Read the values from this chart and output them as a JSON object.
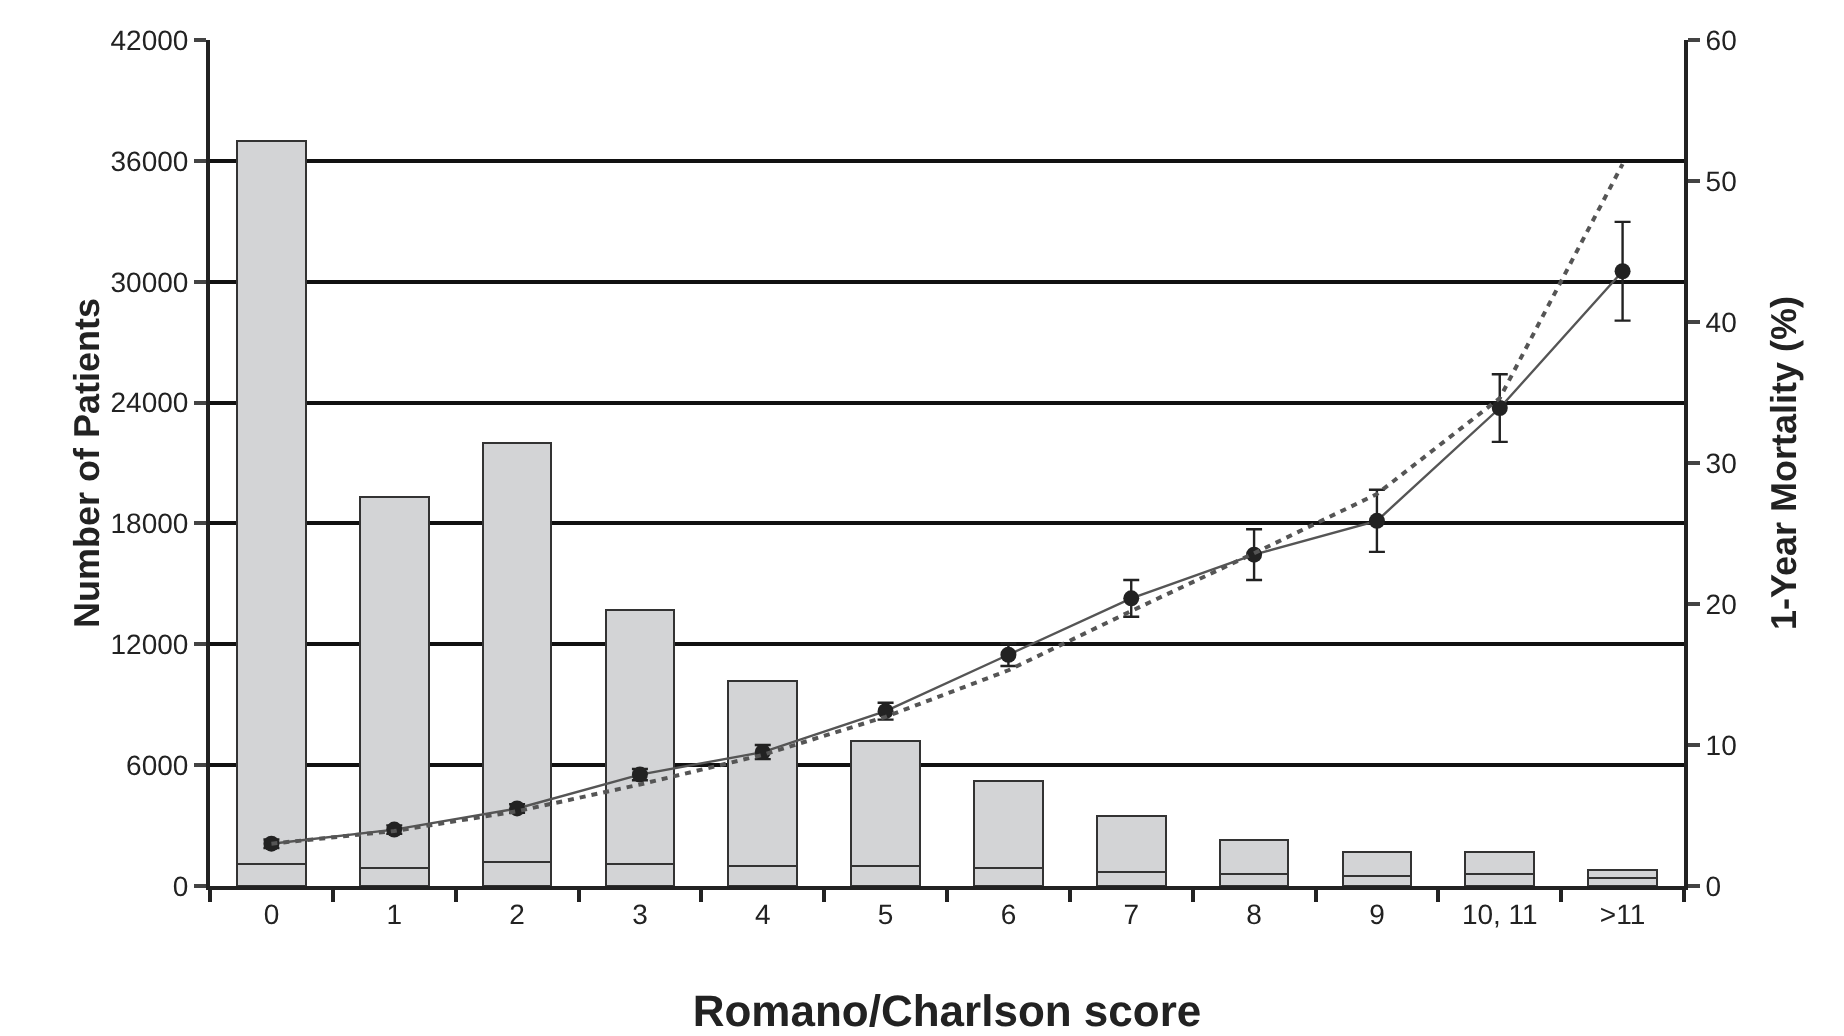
{
  "chart_data": {
    "type": "bar",
    "stacked": true,
    "xlabel": "Romano/Charlson score",
    "ylabel": "Number of Patients",
    "y2label": "1-Year Mortality (%)",
    "categories": [
      "0",
      "1",
      "2",
      "3",
      "4",
      "5",
      "6",
      "7",
      "8",
      "9",
      "10, 11",
      ">11"
    ],
    "series": [
      {
        "color": "#d3d4d6",
        "values": [
          1100,
          900,
          1200,
          1100,
          1000,
          1000,
          900,
          700,
          600,
          500,
          600,
          400
        ]
      },
      {
        "color": "#d3d4d6",
        "values": [
          35900,
          18400,
          20800,
          12600,
          9200,
          6200,
          4300,
          2800,
          1700,
          1200,
          1100,
          400
        ]
      },
      {
        "type": "line",
        "axis": "y2",
        "color": "#555555",
        "marker": "circle",
        "line_style": "solid",
        "values": [
          3.0,
          4.0,
          5.5,
          7.9,
          9.5,
          12.4,
          16.4,
          20.4,
          23.5,
          25.9,
          33.9,
          43.6
        ],
        "errors": [
          0.3,
          0.3,
          0.3,
          0.4,
          0.5,
          0.6,
          0.8,
          1.3,
          1.8,
          2.2,
          2.4,
          3.5
        ]
      },
      {
        "type": "line",
        "axis": "y2",
        "color": "#555555",
        "marker": "none",
        "line_style": "dotted",
        "values": [
          3.0,
          3.9,
          5.3,
          7.2,
          9.3,
          12.0,
          15.3,
          19.5,
          23.6,
          27.8,
          34.6,
          51.2
        ]
      }
    ],
    "ylim": [
      0,
      42000
    ],
    "yticks": [
      0,
      6000,
      12000,
      18000,
      24000,
      30000,
      36000,
      42000
    ],
    "y2lim": [
      0,
      60
    ],
    "y2ticks": [
      0,
      10,
      20,
      30,
      40,
      50,
      60
    ],
    "grid": "y",
    "legend": false
  }
}
